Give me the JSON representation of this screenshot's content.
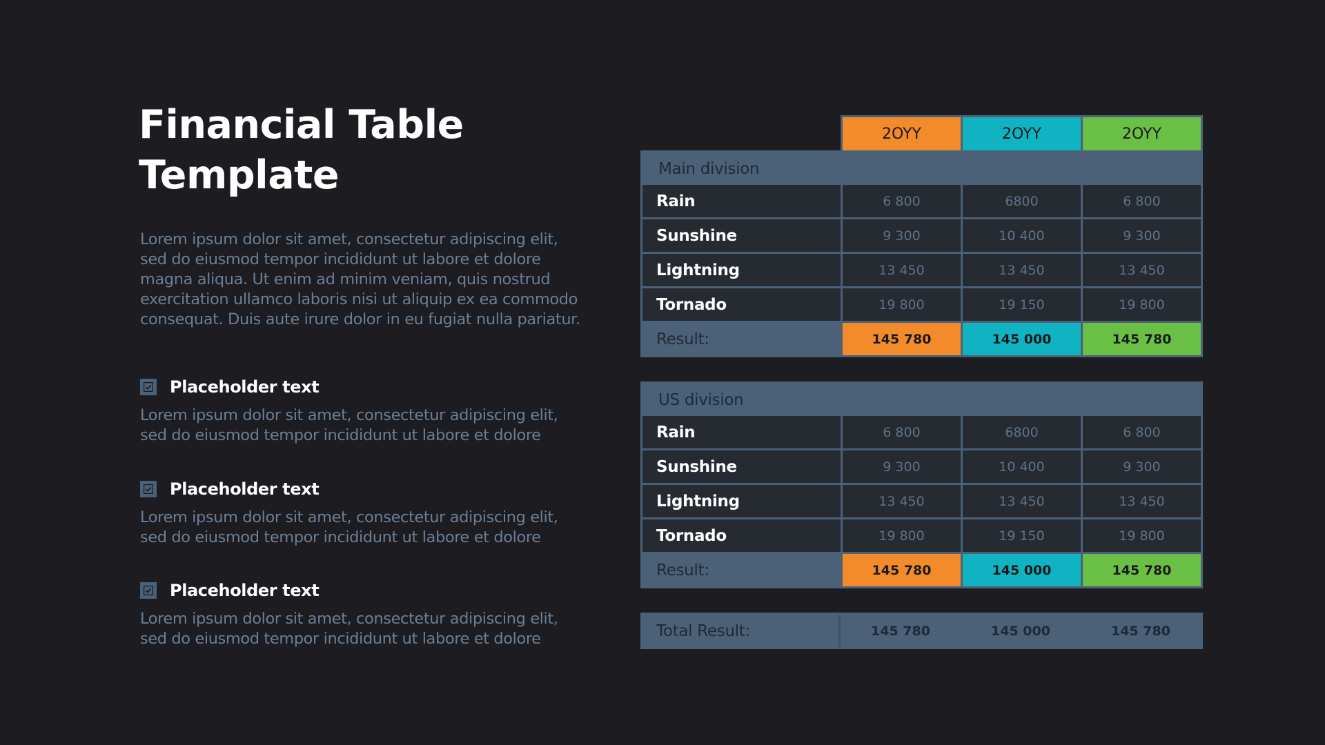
{
  "title": "Financial Table Template",
  "intro": "Lorem ipsum dolor sit amet, consectetur adipiscing elit, sed do eiusmod tempor incididunt ut labore et dolore magna aliqua. Ut enim ad minim veniam, quis nostrud exercitation ullamco laboris nisi ut aliquip ex ea commodo consequat. Duis aute irure dolor in eu fugiat nulla pariatur.",
  "items": [
    {
      "title": "Placeholder text",
      "desc": "Lorem ipsum dolor sit amet, consectetur adipiscing elit, sed do eiusmod tempor incididunt ut labore et dolore"
    },
    {
      "title": "Placeholder text",
      "desc": "Lorem ipsum dolor sit amet, consectetur adipiscing elit, sed do eiusmod tempor incididunt ut labore et dolore"
    },
    {
      "title": "Placeholder text",
      "desc": "Lorem ipsum dolor sit amet, consectetur adipiscing elit, sed do eiusmod tempor incididunt ut labore et dolore"
    }
  ],
  "icons": {
    "checkbox": "checkbox-checked-icon"
  },
  "colors": {
    "background": "#1c1c21",
    "accent_orange": "#f38b2a",
    "accent_teal": "#10b3c2",
    "accent_green": "#6abf45",
    "table_header": "#4b6178",
    "table_cell": "#262a31"
  },
  "years": [
    "2OYY",
    "2OYY",
    "2OYY"
  ],
  "divisions": [
    {
      "name": "Main division",
      "rows": [
        {
          "label": "Rain",
          "values": [
            "6 800",
            "6800",
            "6 800"
          ]
        },
        {
          "label": "Sunshine",
          "values": [
            "9 300",
            "10 400",
            "9 300"
          ]
        },
        {
          "label": "Lightning",
          "values": [
            "13 450",
            "13 450",
            "13 450"
          ]
        },
        {
          "label": "Tornado",
          "values": [
            "19 800",
            "19 150",
            "19 800"
          ]
        }
      ],
      "result_label": "Result:",
      "result_values": [
        "145 780",
        "145 000",
        "145 780"
      ]
    },
    {
      "name": "US division",
      "rows": [
        {
          "label": "Rain",
          "values": [
            "6 800",
            "6800",
            "6 800"
          ]
        },
        {
          "label": "Sunshine",
          "values": [
            "9 300",
            "10 400",
            "9 300"
          ]
        },
        {
          "label": "Lightning",
          "values": [
            "13 450",
            "13 450",
            "13 450"
          ]
        },
        {
          "label": "Tornado",
          "values": [
            "19 800",
            "19 150",
            "19 800"
          ]
        }
      ],
      "result_label": "Result:",
      "result_values": [
        "145 780",
        "145 000",
        "145 780"
      ]
    }
  ],
  "total": {
    "label": "Total Result:",
    "values": [
      "145 780",
      "145 000",
      "145 780"
    ]
  }
}
